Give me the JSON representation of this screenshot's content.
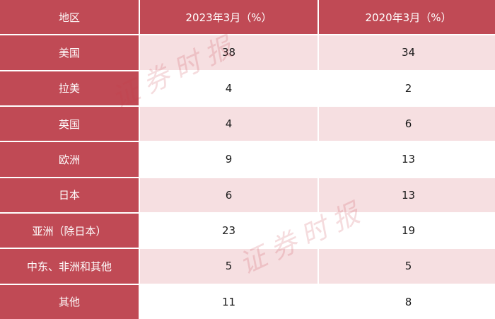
{
  "table": {
    "headers": [
      "地区",
      "2023年3月（%）",
      "2020年3月（%）"
    ],
    "rows": [
      {
        "region": "美国",
        "y2023": "38",
        "y2020": "34"
      },
      {
        "region": "拉美",
        "y2023": "4",
        "y2020": "2"
      },
      {
        "region": "英国",
        "y2023": "4",
        "y2020": "6"
      },
      {
        "region": "欧洲",
        "y2023": "9",
        "y2020": "13"
      },
      {
        "region": "日本",
        "y2023": "6",
        "y2020": "13"
      },
      {
        "region": "亚洲（除日本）",
        "y2023": "23",
        "y2020": "19"
      },
      {
        "region": "中东、非洲和其他",
        "y2023": "5",
        "y2020": "5"
      },
      {
        "region": "其他",
        "y2023": "11",
        "y2020": "8"
      }
    ]
  },
  "watermark": {
    "text": "证券时报"
  },
  "colors": {
    "header_bg": "#c04a55",
    "stripe_bg": "#f6dfe1"
  }
}
